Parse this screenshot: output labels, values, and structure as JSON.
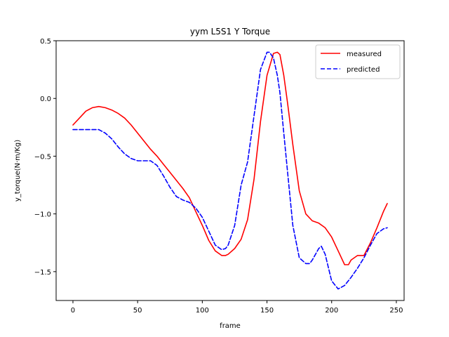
{
  "chart_data": {
    "type": "line",
    "title": "yym L5S1 Y Torque",
    "xlabel": "frame",
    "ylabel": "y_torque(N·m/Kg)",
    "xlim": [
      -13,
      256
    ],
    "ylim": [
      -1.75,
      0.5
    ],
    "xticks": [
      0,
      50,
      100,
      150,
      200,
      250
    ],
    "xtick_labels": [
      "0",
      "50",
      "100",
      "150",
      "200",
      "250"
    ],
    "yticks": [
      0.5,
      0.0,
      -0.5,
      -1.0,
      -1.5
    ],
    "ytick_labels": [
      "0.5",
      "0.0",
      "−0.5",
      "−1.0",
      "−1.5"
    ],
    "grid": false,
    "legend_position": "top-right",
    "series": [
      {
        "name": "measured",
        "color": "#ff0000",
        "dash": "solid",
        "x": [
          0,
          5,
          10,
          15,
          20,
          25,
          30,
          35,
          40,
          45,
          50,
          55,
          60,
          65,
          70,
          75,
          80,
          85,
          90,
          95,
          100,
          105,
          110,
          115,
          118,
          120,
          125,
          130,
          135,
          140,
          145,
          150,
          155,
          158,
          160,
          163,
          166,
          170,
          175,
          180,
          185,
          190,
          195,
          200,
          205,
          210,
          213,
          215,
          220,
          225,
          230,
          235,
          240,
          243
        ],
        "y": [
          -0.23,
          -0.17,
          -0.11,
          -0.08,
          -0.07,
          -0.08,
          -0.1,
          -0.13,
          -0.17,
          -0.23,
          -0.3,
          -0.37,
          -0.44,
          -0.5,
          -0.57,
          -0.64,
          -0.71,
          -0.78,
          -0.86,
          -0.98,
          -1.1,
          -1.23,
          -1.32,
          -1.36,
          -1.36,
          -1.35,
          -1.3,
          -1.22,
          -1.05,
          -0.7,
          -0.2,
          0.2,
          0.39,
          0.4,
          0.38,
          0.2,
          -0.05,
          -0.4,
          -0.8,
          -1.0,
          -1.06,
          -1.08,
          -1.12,
          -1.2,
          -1.32,
          -1.44,
          -1.44,
          -1.4,
          -1.36,
          -1.36,
          -1.25,
          -1.12,
          -0.98,
          -0.91
        ]
      },
      {
        "name": "predicted",
        "color": "#0000ff",
        "dash": "dashed",
        "x": [
          0,
          5,
          10,
          15,
          20,
          25,
          30,
          35,
          40,
          45,
          50,
          55,
          60,
          65,
          70,
          75,
          80,
          85,
          90,
          95,
          100,
          105,
          110,
          115,
          118,
          120,
          125,
          130,
          135,
          140,
          145,
          150,
          152,
          155,
          158,
          160,
          163,
          166,
          170,
          175,
          180,
          183,
          185,
          190,
          192,
          195,
          200,
          205,
          210,
          215,
          220,
          225,
          230,
          235,
          240,
          243
        ],
        "y": [
          -0.27,
          -0.27,
          -0.27,
          -0.27,
          -0.27,
          -0.3,
          -0.35,
          -0.42,
          -0.48,
          -0.52,
          -0.54,
          -0.54,
          -0.54,
          -0.58,
          -0.67,
          -0.77,
          -0.85,
          -0.88,
          -0.9,
          -0.95,
          -1.03,
          -1.15,
          -1.27,
          -1.31,
          -1.3,
          -1.27,
          -1.1,
          -0.75,
          -0.55,
          -0.15,
          0.25,
          0.4,
          0.4,
          0.35,
          0.2,
          0.05,
          -0.3,
          -0.65,
          -1.1,
          -1.38,
          -1.43,
          -1.43,
          -1.4,
          -1.3,
          -1.28,
          -1.35,
          -1.58,
          -1.65,
          -1.62,
          -1.55,
          -1.47,
          -1.38,
          -1.27,
          -1.17,
          -1.13,
          -1.12
        ]
      }
    ]
  }
}
